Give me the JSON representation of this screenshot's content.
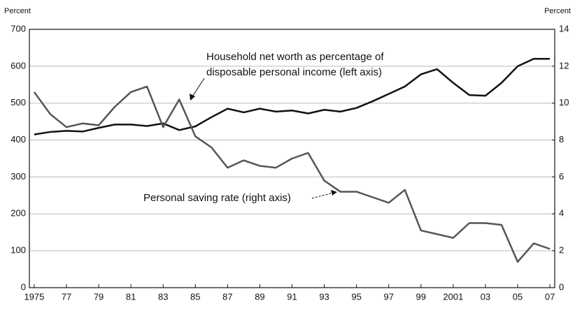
{
  "chart_data": {
    "type": "line",
    "y_label": "Percent",
    "y2_label": "Percent",
    "annotations": [
      "Household net worth as percentage of",
      "disposable personal income (left axis)",
      "Personal saving rate (right axis)"
    ],
    "x": [
      1975,
      1976,
      1977,
      1978,
      1979,
      1980,
      1981,
      1982,
      1983,
      1984,
      1985,
      1986,
      1987,
      1988,
      1989,
      1990,
      1991,
      1992,
      1993,
      1994,
      1995,
      1996,
      1997,
      1998,
      1999,
      2000,
      2001,
      2002,
      2003,
      2004,
      2005,
      2006,
      2007
    ],
    "series": [
      {
        "name": "Household net worth as percentage of disposable personal income",
        "color": "#111111",
        "values": [
          415,
          422,
          425,
          423,
          433,
          442,
          442,
          438,
          445,
          427,
          437,
          462,
          485,
          475,
          485,
          477,
          480,
          472,
          482,
          477,
          487,
          505,
          525,
          545,
          578,
          592,
          555,
          522,
          520,
          555,
          600,
          620,
          620
        ]
      },
      {
        "name": "Personal saving rate",
        "color": "#555555",
        "axis": "y2",
        "values": [
          10.6,
          9.4,
          8.7,
          8.9,
          8.8,
          9.8,
          10.6,
          10.9,
          8.7,
          10.2,
          8.2,
          7.6,
          6.5,
          6.9,
          6.6,
          6.5,
          7.0,
          7.3,
          5.8,
          5.2,
          5.2,
          4.9,
          4.6,
          5.3,
          3.1,
          2.9,
          2.7,
          3.5,
          3.5,
          3.4,
          1.4,
          2.4,
          2.1
        ]
      }
    ],
    "xlim": [
      1974.7,
      2007.3
    ],
    "xticks": [
      1975,
      {
        "value": 1977,
        "label": "77"
      },
      {
        "value": 1979,
        "label": "79"
      },
      {
        "value": 1981,
        "label": "81"
      },
      {
        "value": 1983,
        "label": "83"
      },
      {
        "value": 1985,
        "label": "85"
      },
      {
        "value": 1987,
        "label": "87"
      },
      {
        "value": 1989,
        "label": "89"
      },
      {
        "value": 1991,
        "label": "91"
      },
      {
        "value": 1993,
        "label": "93"
      },
      {
        "value": 1995,
        "label": "95"
      },
      {
        "value": 1997,
        "label": "97"
      },
      {
        "value": 1999,
        "label": "99"
      },
      2001,
      {
        "value": 2003,
        "label": "03"
      },
      {
        "value": 2005,
        "label": "05"
      },
      {
        "value": 2007,
        "label": "07"
      }
    ],
    "ylim": [
      0,
      700
    ],
    "yticks": [
      0,
      100,
      200,
      300,
      400,
      500,
      600,
      700
    ],
    "y2lim": [
      0,
      14
    ],
    "y2ticks": [
      0,
      2,
      4,
      6,
      8,
      10,
      12,
      14
    ],
    "grid": true
  }
}
